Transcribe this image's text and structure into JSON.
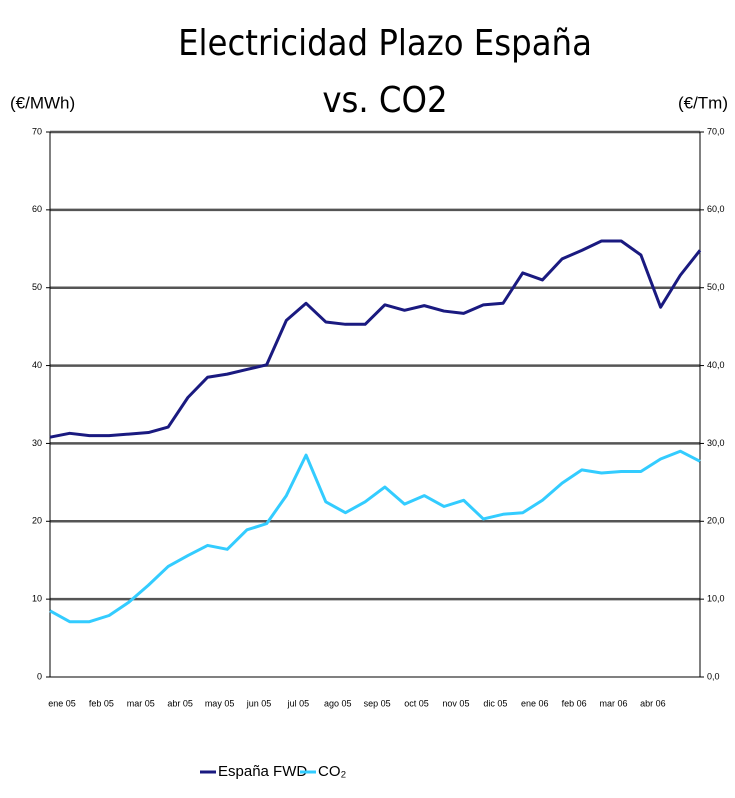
{
  "chart_data": {
    "type": "line",
    "title": "Electricidad Plazo España",
    "subtitle": "vs. CO2",
    "ylabel": "(€/MWh)",
    "y2label": "(€/Tm)",
    "categories": [
      "ene 05",
      null,
      "feb 05",
      null,
      "mar 05",
      null,
      "abr 05",
      null,
      "may 05",
      null,
      "jun 05",
      null,
      "jul 05",
      null,
      "ago 05",
      null,
      "sep 05",
      null,
      "oct 05",
      null,
      "nov 05",
      null,
      "dic 05",
      null,
      "ene 06",
      null,
      "feb 06",
      null,
      "mar 06",
      null,
      "abr 06",
      null,
      null,
      null
    ],
    "series": [
      {
        "name": "España FWD",
        "color": "#1a1a80",
        "axis": "y",
        "values": [
          30.8,
          31.3,
          31.0,
          31.0,
          31.2,
          31.4,
          32.1,
          35.9,
          38.5,
          38.9,
          39.5,
          40.1,
          45.8,
          48.0,
          45.6,
          45.3,
          45.3,
          47.8,
          47.1,
          47.7,
          47.0,
          46.7,
          47.8,
          48.0,
          51.9,
          51.0,
          53.7,
          54.8,
          56.0,
          56.0,
          54.2,
          47.5,
          51.6,
          54.8
        ]
      },
      {
        "name": "CO₂",
        "color": "#33ccff",
        "axis": "y2",
        "values": [
          8.5,
          7.1,
          7.1,
          7.9,
          9.6,
          11.8,
          14.2,
          15.6,
          16.9,
          16.4,
          18.9,
          19.7,
          23.3,
          28.5,
          22.5,
          21.1,
          22.5,
          24.4,
          22.2,
          23.3,
          21.9,
          22.7,
          20.3,
          20.9,
          21.1,
          22.7,
          24.9,
          26.6,
          26.2,
          26.4,
          26.4,
          28.0,
          29.0,
          27.7
        ]
      }
    ],
    "ylim": [
      0,
      70
    ],
    "yticks": [
      0,
      10,
      20,
      30,
      40,
      50,
      60,
      70
    ],
    "y2lim": [
      0,
      70
    ],
    "y2ticks": [
      {
        "value": 0,
        "label": "0,0"
      },
      {
        "value": 10,
        "label": "10,0"
      },
      {
        "value": 20,
        "label": "20,0"
      },
      {
        "value": 30,
        "label": "30,0"
      },
      {
        "value": 40,
        "label": "40,0"
      },
      {
        "value": 50,
        "label": "50,0"
      },
      {
        "value": 60,
        "label": "60,0"
      },
      {
        "value": 70,
        "label": "70,0"
      }
    ],
    "grid": true,
    "legend": "bottom"
  }
}
